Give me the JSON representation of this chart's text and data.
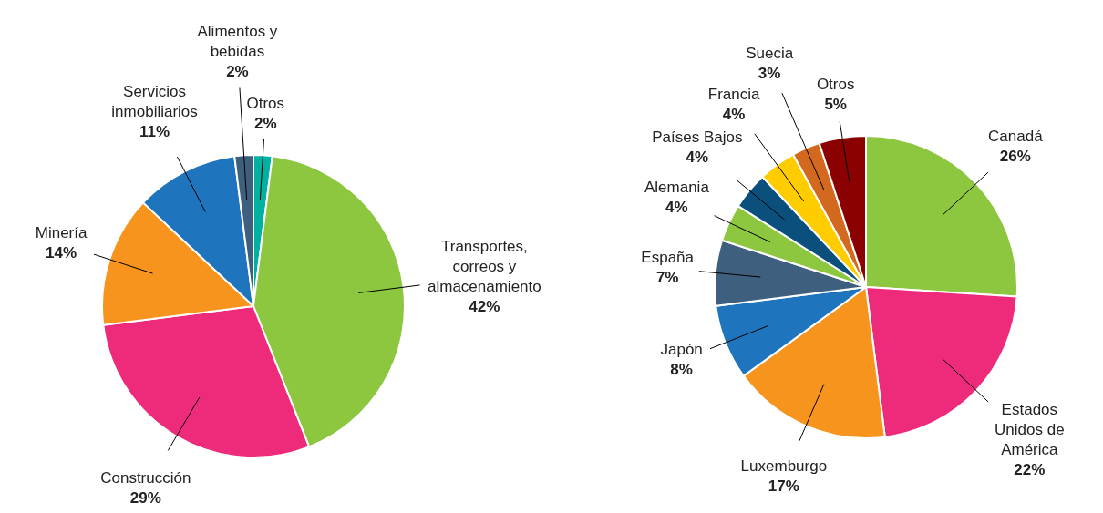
{
  "chart_data": [
    {
      "type": "pie",
      "categories": [
        "Otros",
        "Transportes, correos y almacenamiento",
        "Construcción",
        "Minería",
        "Servicios inmobiliarios",
        "Alimentos y bebidas"
      ],
      "values": [
        2,
        42,
        29,
        14,
        11,
        2
      ],
      "value_labels": [
        "2%",
        "42%",
        "29%",
        "14%",
        "11%",
        "2%"
      ],
      "colors": [
        "#00b0a0",
        "#8dc63f",
        "#ee2a7b",
        "#f7941d",
        "#1f75bd",
        "#3f5f7f"
      ]
    },
    {
      "type": "pie",
      "categories": [
        "Canadá",
        "Estados Unidos de América",
        "Luxemburgo",
        "Japón",
        "España",
        "Alemania",
        "Países Bajos",
        "Francia",
        "Suecia",
        "Otros"
      ],
      "values": [
        26,
        22,
        17,
        8,
        7,
        4,
        4,
        4,
        3,
        5
      ],
      "value_labels": [
        "26%",
        "22%",
        "17%",
        "8%",
        "7%",
        "4%",
        "4%",
        "4%",
        "3%",
        "5%"
      ],
      "colors": [
        "#8dc63f",
        "#ee2a7b",
        "#f7941d",
        "#1f75bd",
        "#3f5f7f",
        "#8dc63f",
        "#0b4f7c",
        "#ffcc00",
        "#d2691e",
        "#8b0000"
      ]
    }
  ]
}
